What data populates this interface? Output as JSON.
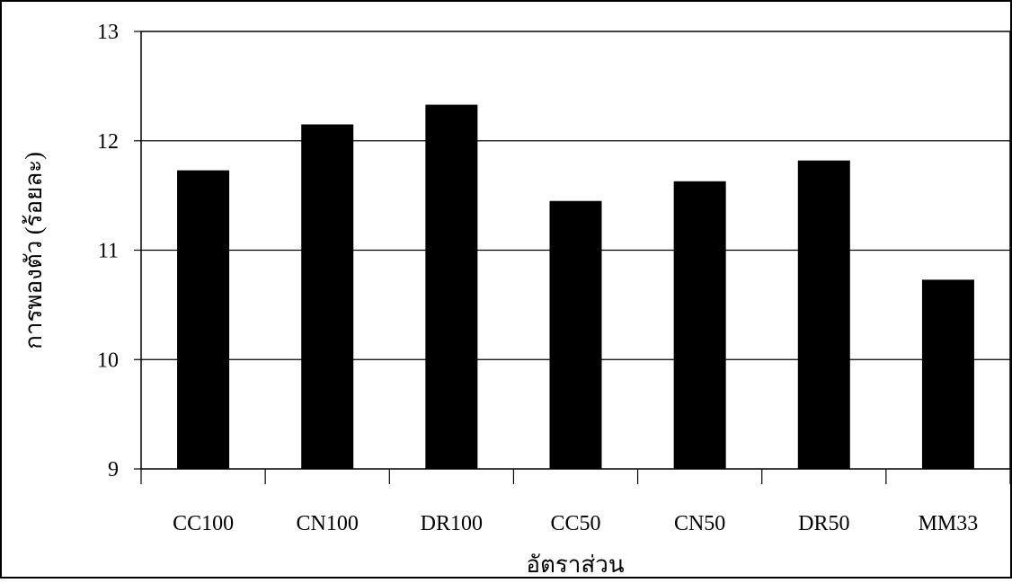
{
  "chart_data": {
    "type": "bar",
    "title": "",
    "xlabel": "อัตราส่วน",
    "ylabel": "การพองตัว (ร้อยละ)",
    "categories": [
      "CC100",
      "CN100",
      "DR100",
      "CC50",
      "CN50",
      "DR50",
      "MM33"
    ],
    "values": [
      11.73,
      12.15,
      12.33,
      11.45,
      11.63,
      11.82,
      10.73
    ],
    "ylim": [
      9,
      13
    ],
    "yticks": [
      "9",
      "10",
      "11",
      "12",
      "13"
    ],
    "grid": true,
    "legend": "none",
    "bar_color": "#000000"
  }
}
